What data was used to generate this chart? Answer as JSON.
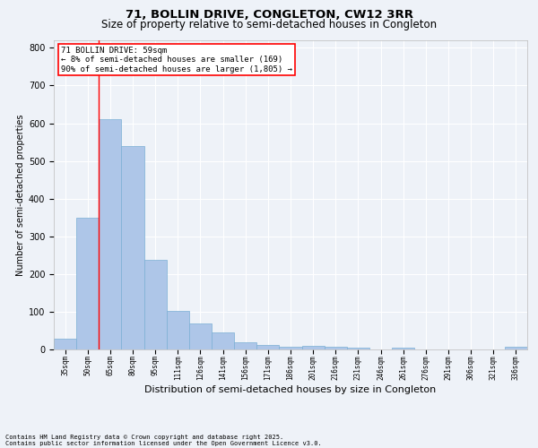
{
  "title": "71, BOLLIN DRIVE, CONGLETON, CW12 3RR",
  "subtitle": "Size of property relative to semi-detached houses in Congleton",
  "xlabel": "Distribution of semi-detached houses by size in Congleton",
  "ylabel": "Number of semi-detached properties",
  "categories": [
    "35sqm",
    "50sqm",
    "65sqm",
    "80sqm",
    "95sqm",
    "111sqm",
    "126sqm",
    "141sqm",
    "156sqm",
    "171sqm",
    "186sqm",
    "201sqm",
    "216sqm",
    "231sqm",
    "246sqm",
    "261sqm",
    "276sqm",
    "291sqm",
    "306sqm",
    "321sqm",
    "336sqm"
  ],
  "values": [
    28,
    350,
    610,
    540,
    238,
    102,
    68,
    46,
    18,
    13,
    8,
    10,
    8,
    4,
    0,
    5,
    0,
    0,
    0,
    0,
    7
  ],
  "bar_color": "#aec6e8",
  "bar_edge_color": "#7bafd4",
  "red_line_x": 1.5,
  "annotation_title": "71 BOLLIN DRIVE: 59sqm",
  "annotation_line1": "← 8% of semi-detached houses are smaller (169)",
  "annotation_line2": "90% of semi-detached houses are larger (1,805) →",
  "ylim": [
    0,
    820
  ],
  "yticks": [
    0,
    100,
    200,
    300,
    400,
    500,
    600,
    700,
    800
  ],
  "footnote1": "Contains HM Land Registry data © Crown copyright and database right 2025.",
  "footnote2": "Contains public sector information licensed under the Open Government Licence v3.0.",
  "background_color": "#eef2f8",
  "grid_color": "#ffffff",
  "title_fontsize": 9.5,
  "subtitle_fontsize": 8.5,
  "bar_fontsize": 6,
  "ylabel_fontsize": 7,
  "xlabel_fontsize": 8,
  "annot_fontsize": 6.5,
  "footnote_fontsize": 5
}
